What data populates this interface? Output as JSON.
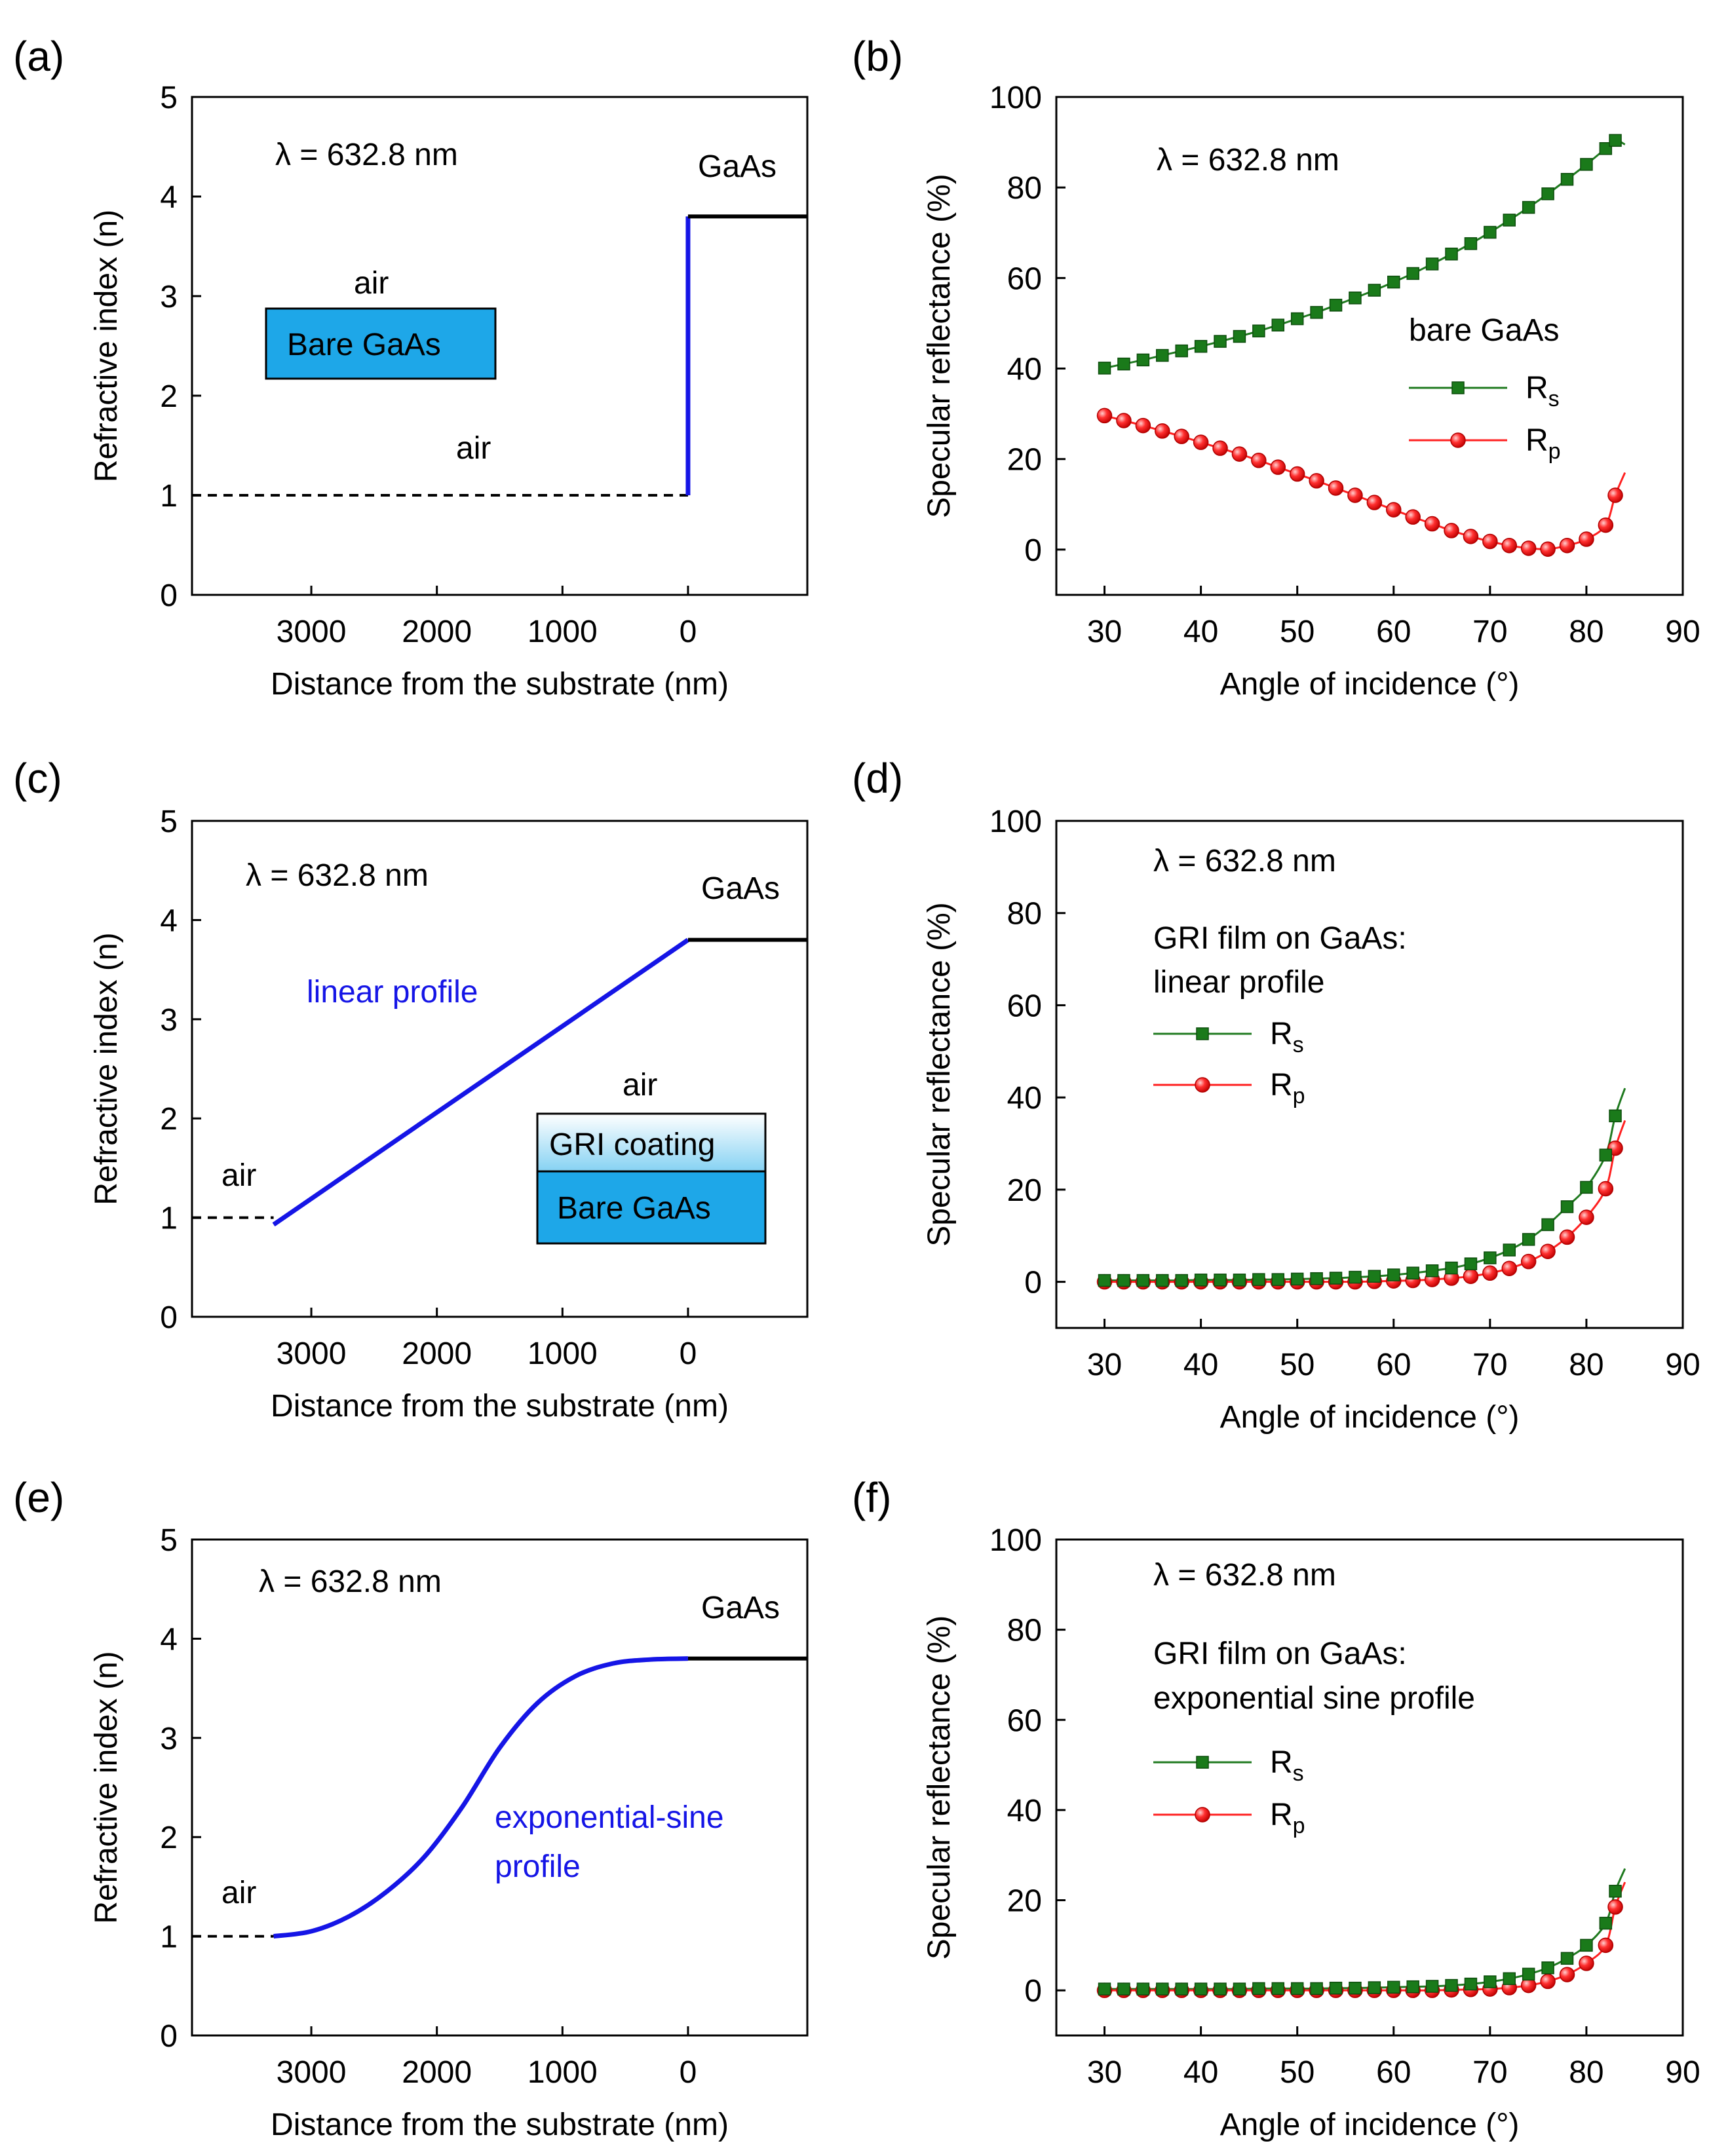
{
  "figure": {
    "title": ""
  },
  "colors": {
    "rs": "#1f7a1f",
    "rs_marker": "#1a7a1a",
    "rp": "#ff2020",
    "profile": "#1515e6",
    "gaas_box": "#1ea7e8",
    "gri_top": "#eaf7fd",
    "gri_bottom": "#8dd4f2",
    "black": "#000000"
  },
  "chart_data": [
    {
      "id": "a",
      "panel_label": "(a)",
      "type": "line",
      "title": "",
      "xlabel": "Distance from the substrate (nm)",
      "ylabel": "Refractive index (n)",
      "xlim": [
        3950,
        -950
      ],
      "ylim": [
        0,
        5
      ],
      "xticks": [
        "3000",
        "2000",
        "1000",
        "0"
      ],
      "xtick_values": [
        3000,
        2000,
        1000,
        0
      ],
      "yticks": [
        "0",
        "1",
        "2",
        "3",
        "4",
        "5"
      ],
      "annotations": {
        "wavelength": "λ = 632.8 nm",
        "substrate": "GaAs",
        "air_left": "air",
        "inset_air": "air",
        "inset_bottom": "Bare GaAs"
      },
      "series": [
        {
          "name": "air",
          "style": "dashed",
          "x": [
            3950,
            0
          ],
          "y": [
            1,
            1
          ]
        },
        {
          "name": "interface",
          "style": "blue",
          "x": [
            0,
            0
          ],
          "y": [
            1,
            3.8
          ]
        },
        {
          "name": "GaAs",
          "style": "solid-black",
          "x": [
            0,
            -950
          ],
          "y": [
            3.8,
            3.8
          ]
        }
      ]
    },
    {
      "id": "b",
      "panel_label": "(b)",
      "type": "line",
      "title": "",
      "xlabel": "Angle of incidence (°)",
      "ylabel": "Specular reflectance (%)",
      "xlim": [
        25,
        90
      ],
      "ylim": [
        -10,
        100
      ],
      "xticks": [
        "30",
        "40",
        "50",
        "60",
        "70",
        "80",
        "90"
      ],
      "yticks": [
        "0",
        "20",
        "40",
        "60",
        "80",
        "100"
      ],
      "annotations": {
        "wavelength": "λ = 632.8 nm",
        "legend_title": "bare GaAs"
      },
      "legend": [
        {
          "name": "Rs",
          "main": "R",
          "sub": "s"
        },
        {
          "name": "Rp",
          "main": "R",
          "sub": "p"
        }
      ],
      "x": [
        30,
        32,
        34,
        36,
        38,
        40,
        42,
        44,
        46,
        48,
        50,
        52,
        54,
        56,
        58,
        60,
        62,
        64,
        66,
        68,
        70,
        72,
        74,
        76,
        78,
        80,
        82,
        83
      ],
      "series": [
        {
          "name": "Rs",
          "values": [
            40.1,
            41.0,
            41.9,
            42.9,
            43.9,
            44.9,
            46.0,
            47.1,
            48.3,
            49.6,
            51.0,
            52.4,
            54.0,
            55.6,
            57.3,
            59.1,
            61.0,
            63.1,
            65.3,
            67.6,
            70.1,
            72.8,
            75.6,
            78.6,
            81.8,
            85.1,
            88.6,
            90.4
          ],
          "line_end": [
            84,
            89.5
          ]
        },
        {
          "name": "Rp",
          "values": [
            29.6,
            28.5,
            27.4,
            26.2,
            25.0,
            23.7,
            22.4,
            21.1,
            19.7,
            18.2,
            16.7,
            15.2,
            13.6,
            12.0,
            10.4,
            8.8,
            7.2,
            5.7,
            4.2,
            2.9,
            1.8,
            0.9,
            0.3,
            0.1,
            0.9,
            2.3,
            5.4,
            12.0
          ],
          "line_end": [
            84,
            17
          ]
        }
      ]
    },
    {
      "id": "c",
      "panel_label": "(c)",
      "type": "line",
      "title": "",
      "xlabel": "Distance from the substrate (nm)",
      "ylabel": "Refractive index (n)",
      "xlim": [
        3950,
        -950
      ],
      "ylim": [
        0,
        5
      ],
      "xticks": [
        "3000",
        "2000",
        "1000",
        "0"
      ],
      "xtick_values": [
        3000,
        2000,
        1000,
        0
      ],
      "yticks": [
        "0",
        "1",
        "2",
        "3",
        "4",
        "5"
      ],
      "annotations": {
        "wavelength": "λ = 632.8 nm",
        "substrate": "GaAs",
        "profile": "linear profile",
        "air_left": "air",
        "inset_air": "air",
        "inset_top": "GRI coating",
        "inset_bottom": "Bare GaAs"
      },
      "series": [
        {
          "name": "air",
          "style": "dashed",
          "x": [
            3950,
            3300
          ],
          "y": [
            1,
            1
          ]
        },
        {
          "name": "linear profile",
          "style": "blue",
          "x": [
            3300,
            0
          ],
          "y": [
            0.93,
            3.8
          ]
        },
        {
          "name": "GaAs",
          "style": "solid-black",
          "x": [
            0,
            -950
          ],
          "y": [
            3.8,
            3.8
          ]
        }
      ]
    },
    {
      "id": "d",
      "panel_label": "(d)",
      "type": "line",
      "title": "",
      "xlabel": "Angle of incidence (°)",
      "ylabel": "Specular reflectance (%)",
      "xlim": [
        25,
        90
      ],
      "ylim": [
        -10,
        100
      ],
      "xticks": [
        "30",
        "40",
        "50",
        "60",
        "70",
        "80",
        "90"
      ],
      "yticks": [
        "0",
        "20",
        "40",
        "60",
        "80",
        "100"
      ],
      "annotations": {
        "wavelength": "λ = 632.8 nm",
        "legend_title_1": "GRI film on GaAs:",
        "legend_title_2": "linear profile"
      },
      "legend": [
        {
          "name": "Rs",
          "main": "R",
          "sub": "s"
        },
        {
          "name": "Rp",
          "main": "R",
          "sub": "p"
        }
      ],
      "x": [
        30,
        32,
        34,
        36,
        38,
        40,
        42,
        44,
        46,
        48,
        50,
        52,
        54,
        56,
        58,
        60,
        62,
        64,
        66,
        68,
        70,
        72,
        74,
        76,
        78,
        80,
        82,
        83
      ],
      "series": [
        {
          "name": "Rs",
          "values": [
            0.3,
            0.3,
            0.3,
            0.3,
            0.3,
            0.4,
            0.4,
            0.4,
            0.5,
            0.5,
            0.6,
            0.7,
            0.8,
            1.0,
            1.2,
            1.5,
            1.9,
            2.4,
            3.0,
            3.9,
            5.2,
            6.9,
            9.2,
            12.4,
            16.3,
            20.5,
            27.5,
            36.0
          ],
          "line_end": [
            84,
            42
          ]
        },
        {
          "name": "Rp",
          "values": [
            0.0,
            0.0,
            0.0,
            0.0,
            0.0,
            0.0,
            0.0,
            0.0,
            0.0,
            0.0,
            0.0,
            0.0,
            0.0,
            0.0,
            0.1,
            0.2,
            0.3,
            0.5,
            0.8,
            1.2,
            1.9,
            2.9,
            4.4,
            6.6,
            9.7,
            14.0,
            20.2,
            29.0
          ],
          "line_end": [
            84,
            35
          ]
        }
      ]
    },
    {
      "id": "e",
      "panel_label": "(e)",
      "type": "line",
      "title": "",
      "xlabel": "Distance from the substrate (nm)",
      "ylabel": "Refractive index (n)",
      "xlim": [
        3950,
        -950
      ],
      "ylim": [
        0,
        5
      ],
      "xticks": [
        "3000",
        "2000",
        "1000",
        "0"
      ],
      "xtick_values": [
        3000,
        2000,
        1000,
        0
      ],
      "yticks": [
        "0",
        "1",
        "2",
        "3",
        "4",
        "5"
      ],
      "annotations": {
        "wavelength": "λ = 632.8 nm",
        "substrate": "GaAs",
        "profile_1": "exponential-sine",
        "profile_2": "profile",
        "air_left": "air"
      },
      "series": [
        {
          "name": "air",
          "style": "dashed",
          "x": [
            3950,
            3300
          ],
          "y": [
            1,
            1
          ]
        },
        {
          "name": "exponential-sine profile",
          "style": "blue",
          "x": [
            3300,
            3000,
            2700,
            2400,
            2100,
            1800,
            1500,
            1200,
            900,
            600,
            300,
            0
          ],
          "y": [
            1.0,
            1.05,
            1.2,
            1.45,
            1.8,
            2.3,
            2.9,
            3.35,
            3.62,
            3.75,
            3.79,
            3.8
          ]
        },
        {
          "name": "GaAs",
          "style": "solid-black",
          "x": [
            0,
            -950
          ],
          "y": [
            3.8,
            3.8
          ]
        }
      ]
    },
    {
      "id": "f",
      "panel_label": "(f)",
      "type": "line",
      "title": "",
      "xlabel": "Angle of incidence (°)",
      "ylabel": "Specular reflectance (%)",
      "xlim": [
        25,
        90
      ],
      "ylim": [
        -10,
        100
      ],
      "xticks": [
        "30",
        "40",
        "50",
        "60",
        "70",
        "80",
        "90"
      ],
      "yticks": [
        "0",
        "20",
        "40",
        "60",
        "80",
        "100"
      ],
      "annotations": {
        "wavelength": "λ = 632.8 nm",
        "legend_title_1": "GRI film on GaAs:",
        "legend_title_2": "exponential sine profile"
      },
      "legend": [
        {
          "name": "Rs",
          "main": "R",
          "sub": "s"
        },
        {
          "name": "Rp",
          "main": "R",
          "sub": "p"
        }
      ],
      "x": [
        30,
        32,
        34,
        36,
        38,
        40,
        42,
        44,
        46,
        48,
        50,
        52,
        54,
        56,
        58,
        60,
        62,
        64,
        66,
        68,
        70,
        72,
        74,
        76,
        78,
        80,
        82,
        83
      ],
      "series": [
        {
          "name": "Rs",
          "values": [
            0.3,
            0.3,
            0.3,
            0.3,
            0.3,
            0.3,
            0.3,
            0.3,
            0.4,
            0.4,
            0.4,
            0.4,
            0.5,
            0.5,
            0.6,
            0.7,
            0.8,
            0.9,
            1.1,
            1.4,
            1.9,
            2.6,
            3.6,
            5.0,
            7.1,
            10.0,
            14.9,
            22.0
          ],
          "line_end": [
            84,
            27
          ]
        },
        {
          "name": "Rp",
          "values": [
            0.0,
            0.0,
            0.0,
            0.0,
            0.0,
            0.0,
            0.0,
            0.0,
            0.0,
            0.0,
            0.0,
            0.0,
            0.0,
            0.0,
            0.0,
            0.0,
            0.0,
            0.0,
            0.1,
            0.2,
            0.3,
            0.6,
            1.1,
            2.0,
            3.5,
            6.0,
            10.0,
            18.5
          ],
          "line_end": [
            84,
            24
          ]
        }
      ]
    }
  ]
}
